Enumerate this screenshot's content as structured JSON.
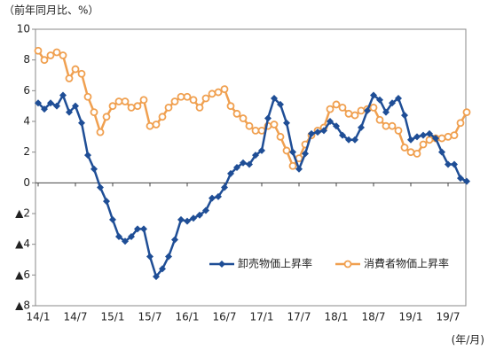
{
  "chart_data": {
    "type": "line",
    "title": "（前年同月比、%）",
    "x_label": "(年/月)",
    "categories": [
      "14/1",
      null,
      null,
      null,
      null,
      null,
      "14/7",
      null,
      null,
      null,
      null,
      null,
      "15/1",
      null,
      null,
      null,
      null,
      null,
      "15/7",
      null,
      null,
      null,
      null,
      null,
      "16/1",
      null,
      null,
      null,
      null,
      null,
      "16/7",
      null,
      null,
      null,
      null,
      null,
      "17/1",
      null,
      null,
      null,
      null,
      null,
      "17/7",
      null,
      null,
      null,
      null,
      null,
      "18/1",
      null,
      null,
      null,
      null,
      null,
      "18/7",
      null,
      null,
      null,
      null,
      null,
      "19/1",
      null,
      null,
      null,
      null,
      null,
      "19/7",
      null,
      null,
      null
    ],
    "series": [
      {
        "name": "卸売物価上昇率",
        "color": "#1f4e96",
        "marker": "diamond",
        "values": [
          5.2,
          4.8,
          5.2,
          5.0,
          5.7,
          4.6,
          5.0,
          3.9,
          1.8,
          0.9,
          -0.3,
          -1.2,
          -2.4,
          -3.5,
          -3.8,
          -3.5,
          -3.0,
          -3.0,
          -4.8,
          -6.1,
          -5.6,
          -4.8,
          -3.7,
          -2.4,
          -2.5,
          -2.3,
          -2.1,
          -1.8,
          -1.0,
          -0.9,
          -0.3,
          0.6,
          1.0,
          1.3,
          1.2,
          1.8,
          2.1,
          4.2,
          5.5,
          5.1,
          3.9,
          2.0,
          0.9,
          1.9,
          3.2,
          3.3,
          3.4,
          4.0,
          3.7,
          3.1,
          2.8,
          2.8,
          3.6,
          4.7,
          5.7,
          5.4,
          4.6,
          5.2,
          5.5,
          4.4,
          2.8,
          3.0,
          3.1,
          3.2,
          2.9,
          2.0,
          1.2,
          1.2,
          0.3,
          0.1
        ]
      },
      {
        "name": "消費者物価上昇率",
        "color": "#f0a050",
        "marker": "circle",
        "values": [
          8.6,
          8.0,
          8.3,
          8.5,
          8.3,
          6.8,
          7.4,
          7.1,
          5.6,
          4.6,
          3.3,
          4.3,
          5.0,
          5.3,
          5.3,
          4.9,
          5.0,
          5.4,
          3.7,
          3.8,
          4.3,
          4.9,
          5.3,
          5.6,
          5.6,
          5.4,
          4.9,
          5.5,
          5.8,
          5.9,
          6.1,
          5.0,
          4.5,
          4.2,
          3.7,
          3.4,
          3.4,
          3.7,
          3.8,
          3.0,
          2.1,
          1.1,
          1.6,
          2.5,
          3.1,
          3.4,
          3.6,
          4.8,
          5.1,
          4.9,
          4.5,
          4.4,
          4.7,
          4.8,
          4.9,
          4.1,
          3.7,
          3.7,
          3.4,
          2.3,
          2.0,
          1.9,
          2.5,
          2.8,
          2.9,
          2.9,
          3.0,
          3.1,
          3.9,
          4.6
        ]
      }
    ],
    "ylim": [
      -8,
      10
    ],
    "yticks": [
      {
        "value": -8,
        "label": "▲8"
      },
      {
        "value": -6,
        "label": "▲6"
      },
      {
        "value": -4,
        "label": "▲4"
      },
      {
        "value": -2,
        "label": "▲2"
      },
      0,
      2,
      4,
      6,
      8,
      10
    ],
    "grid": false,
    "legend": "lower right"
  }
}
